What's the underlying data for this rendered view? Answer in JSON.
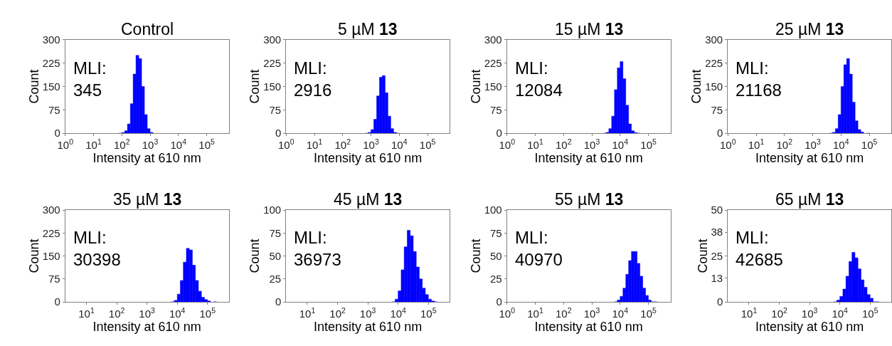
{
  "chart_data": [
    {
      "type": "histogram",
      "title": "Control",
      "xlabel": "Intensity at 610 nm",
      "ylabel": "Count",
      "annotations": [
        "MLI:\n345"
      ],
      "log": "x",
      "color": "#0000ff",
      "xlim": [
        1,
        600000
      ],
      "xticks": [
        {
          "value": 1,
          "label": "10$^{0}$"
        },
        {
          "value": 10,
          "label": "10$^{1}$"
        },
        {
          "value": 100,
          "label": "10$^{2}$"
        },
        {
          "value": 1000,
          "label": "10$^{3}$"
        },
        {
          "value": 10000,
          "label": "10$^{4}$"
        },
        {
          "value": 100000,
          "label": "10$^{5}$"
        }
      ],
      "ylim": [
        0,
        300
      ],
      "yticks": [
        0,
        75,
        150,
        225,
        300
      ],
      "bins": [
        79,
        100,
        126,
        158,
        200,
        251,
        316,
        398,
        501,
        631,
        794,
        1000,
        1259
      ],
      "values": [
        0,
        2,
        8,
        30,
        95,
        190,
        250,
        240,
        150,
        60,
        15,
        3
      ]
    },
    {
      "type": "histogram",
      "title": "5 µM 13",
      "xlabel": "Intensity at 610 nm",
      "ylabel": "Count",
      "annotations": [
        "MLI:\n2916"
      ],
      "log": "x",
      "color": "#0000ff",
      "xlim": [
        1,
        600000
      ],
      "xticks": [
        {
          "value": 1,
          "label": "10$^{0}$"
        },
        {
          "value": 10,
          "label": "10$^{1}$"
        },
        {
          "value": 100,
          "label": "10$^{2}$"
        },
        {
          "value": 1000,
          "label": "10$^{3}$"
        },
        {
          "value": 10000,
          "label": "10$^{4}$"
        },
        {
          "value": 100000,
          "label": "10$^{5}$"
        }
      ],
      "ylim": [
        0,
        300
      ],
      "yticks": [
        0,
        75,
        150,
        225,
        300
      ],
      "bins": [
        631,
        794,
        1000,
        1259,
        1585,
        1995,
        2512,
        3162,
        3981,
        5012,
        6310,
        7943,
        10000
      ],
      "values": [
        0,
        3,
        12,
        45,
        120,
        180,
        185,
        130,
        55,
        15,
        3,
        0
      ]
    },
    {
      "type": "histogram",
      "title": "15 µM 13",
      "xlabel": "Intensity at 610 nm",
      "ylabel": "Count",
      "annotations": [
        "MLI:\n12084"
      ],
      "log": "x",
      "color": "#0000ff",
      "xlim": [
        1,
        600000
      ],
      "xticks": [
        {
          "value": 1,
          "label": "10$^{0}$"
        },
        {
          "value": 10,
          "label": "10$^{1}$"
        },
        {
          "value": 100,
          "label": "10$^{2}$"
        },
        {
          "value": 1000,
          "label": "10$^{3}$"
        },
        {
          "value": 10000,
          "label": "10$^{4}$"
        },
        {
          "value": 100000,
          "label": "10$^{5}$"
        }
      ],
      "ylim": [
        0,
        300
      ],
      "yticks": [
        0,
        75,
        150,
        225,
        300
      ],
      "bins": [
        2512,
        3162,
        3981,
        5012,
        6310,
        7943,
        10000,
        12589,
        15849,
        19953,
        25119,
        31623,
        39811,
        50119
      ],
      "values": [
        0,
        3,
        15,
        55,
        140,
        210,
        230,
        175,
        90,
        30,
        8,
        2,
        0
      ]
    },
    {
      "type": "histogram",
      "title": "25 µM 13",
      "xlabel": "Intensity at 610 nm",
      "ylabel": "Count",
      "annotations": [
        "MLI:\n21168"
      ],
      "log": "x",
      "color": "#0000ff",
      "xlim": [
        1,
        600000
      ],
      "xticks": [
        {
          "value": 1,
          "label": "10$^{0}$"
        },
        {
          "value": 10,
          "label": "10$^{1}$"
        },
        {
          "value": 100,
          "label": "10$^{2}$"
        },
        {
          "value": 1000,
          "label": "10$^{3}$"
        },
        {
          "value": 10000,
          "label": "10$^{4}$"
        },
        {
          "value": 100000,
          "label": "10$^{5}$"
        }
      ],
      "ylim": [
        0,
        300
      ],
      "yticks": [
        0,
        75,
        150,
        225,
        300
      ],
      "bins": [
        3981,
        5012,
        6310,
        7943,
        10000,
        12589,
        15849,
        19953,
        25119,
        31623,
        39811,
        50119,
        63096,
        79433,
        100000
      ],
      "values": [
        0,
        3,
        15,
        60,
        150,
        220,
        240,
        190,
        100,
        40,
        12,
        4,
        null,
        0
      ]
    },
    {
      "type": "histogram",
      "title": "35 µM 13",
      "xlabel": "Intensity at 610 nm",
      "ylabel": "Count",
      "annotations": [
        "MLI:\n30398"
      ],
      "log": "x",
      "color": "#0000ff",
      "xlim": [
        2,
        500000
      ],
      "xticks": [
        {
          "value": 10,
          "label": "10$^{1}$"
        },
        {
          "value": 100,
          "label": "10$^{2}$"
        },
        {
          "value": 1000,
          "label": "10$^{3}$"
        },
        {
          "value": 10000,
          "label": "10$^{4}$"
        },
        {
          "value": 100000,
          "label": "10$^{5}$"
        }
      ],
      "ylim": [
        0,
        300
      ],
      "yticks": [
        0,
        75,
        150,
        225,
        300
      ],
      "bins": [
        6310,
        7943,
        10000,
        12589,
        15849,
        19953,
        25119,
        31623,
        39811,
        50119,
        63096,
        79433,
        100000,
        125893,
        158489,
        199526
      ],
      "values": [
        0,
        5,
        25,
        70,
        130,
        175,
        170,
        120,
        70,
        35,
        15,
        8,
        3,
        null,
        0
      ]
    },
    {
      "type": "histogram",
      "title": "45 µM 13",
      "xlabel": "Intensity at 610 nm",
      "ylabel": "Count",
      "annotations": [
        "MLI:\n36973"
      ],
      "log": "x",
      "color": "#0000ff",
      "xlim": [
        2,
        500000
      ],
      "xticks": [
        {
          "value": 10,
          "label": "10$^{1}$"
        },
        {
          "value": 100,
          "label": "10$^{2}$"
        },
        {
          "value": 1000,
          "label": "10$^{3}$"
        },
        {
          "value": 10000,
          "label": "10$^{4}$"
        },
        {
          "value": 100000,
          "label": "10$^{5}$"
        }
      ],
      "ylim": [
        0,
        100
      ],
      "yticks": [
        0,
        25,
        50,
        75,
        100
      ],
      "bins": [
        6310,
        7943,
        10000,
        12589,
        15849,
        19953,
        25119,
        31623,
        39811,
        50119,
        63096,
        79433,
        100000,
        125893,
        158489,
        199526
      ],
      "values": [
        0,
        3,
        12,
        35,
        60,
        78,
        72,
        55,
        38,
        25,
        15,
        8,
        3,
        1,
        0
      ]
    },
    {
      "type": "histogram",
      "title": "55 µM 13",
      "xlabel": "Intensity at 610 nm",
      "ylabel": "Count",
      "annotations": [
        "MLI:\n40970"
      ],
      "log": "x",
      "color": "#0000ff",
      "xlim": [
        1,
        600000
      ],
      "xticks": [
        {
          "value": 1,
          "label": "10$^{0}$"
        },
        {
          "value": 10,
          "label": "10$^{1}$"
        },
        {
          "value": 100,
          "label": "10$^{2}$"
        },
        {
          "value": 1000,
          "label": "10$^{3}$"
        },
        {
          "value": 10000,
          "label": "10$^{4}$"
        },
        {
          "value": 100000,
          "label": "10$^{5}$"
        }
      ],
      "ylim": [
        0,
        100
      ],
      "yticks": [
        0,
        25,
        50,
        75,
        100
      ],
      "bins": [
        6310,
        7943,
        10000,
        12589,
        15849,
        19953,
        25119,
        31623,
        39811,
        50119,
        63096,
        79433,
        100000,
        125893,
        158489,
        199526
      ],
      "values": [
        0,
        2,
        6,
        15,
        30,
        45,
        55,
        55,
        42,
        28,
        15,
        7,
        2,
        0,
        0
      ]
    },
    {
      "type": "histogram",
      "title": "65 µM 13",
      "xlabel": "Intensity at 610 nm",
      "ylabel": "Count",
      "annotations": [
        "MLI:\n42685"
      ],
      "log": "x",
      "color": "#0000ff",
      "xlim": [
        2,
        500000
      ],
      "xticks": [
        {
          "value": 10,
          "label": "10$^{1}$"
        },
        {
          "value": 100,
          "label": "10$^{2}$"
        },
        {
          "value": 1000,
          "label": "10$^{3}$"
        },
        {
          "value": 10000,
          "label": "10$^{4}$"
        },
        {
          "value": 100000,
          "label": "10$^{5}$"
        }
      ],
      "ylim": [
        0,
        50
      ],
      "yticks": [
        0,
        13,
        25,
        38,
        50
      ],
      "bins": [
        6310,
        7943,
        10000,
        12589,
        15849,
        19953,
        25119,
        31623,
        39811,
        50119,
        63096,
        79433,
        100000,
        125893,
        158489,
        199526
      ],
      "values": [
        0,
        1,
        3,
        7,
        14,
        22,
        27,
        24,
        18,
        12,
        8,
        4,
        2,
        0,
        0
      ]
    }
  ]
}
